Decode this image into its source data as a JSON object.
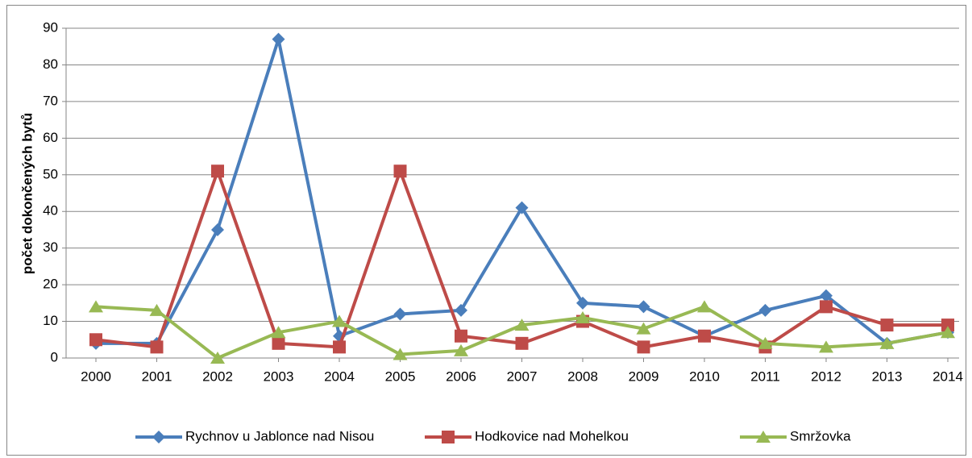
{
  "chart_data": {
    "type": "line",
    "y_label": "počet dokončených bytů",
    "categories": [
      "2000",
      "2001",
      "2002",
      "2003",
      "2004",
      "2005",
      "2006",
      "2007",
      "2008",
      "2009",
      "2010",
      "2011",
      "2012",
      "2013",
      "2014"
    ],
    "series": [
      {
        "name": "Rychnov u Jablonce nad Nisou",
        "color": "#4a7ebb",
        "marker": "diamond",
        "values": [
          4,
          4,
          35,
          87,
          6,
          12,
          13,
          41,
          15,
          14,
          6,
          13,
          17,
          4,
          7
        ]
      },
      {
        "name": "Hodkovice nad Mohelkou",
        "color": "#be4b48",
        "marker": "square",
        "values": [
          5,
          3,
          51,
          4,
          3,
          51,
          6,
          4,
          10,
          3,
          6,
          3,
          14,
          9,
          9
        ]
      },
      {
        "name": "Smržovka",
        "color": "#98b954",
        "marker": "triangle",
        "values": [
          14,
          13,
          0,
          7,
          10,
          1,
          2,
          9,
          11,
          8,
          14,
          4,
          3,
          4,
          7
        ]
      }
    ],
    "ylim": [
      0,
      90
    ],
    "yticks": [
      0,
      10,
      20,
      30,
      40,
      50,
      60,
      70,
      80,
      90
    ],
    "grid": true,
    "legend": "bottom"
  }
}
